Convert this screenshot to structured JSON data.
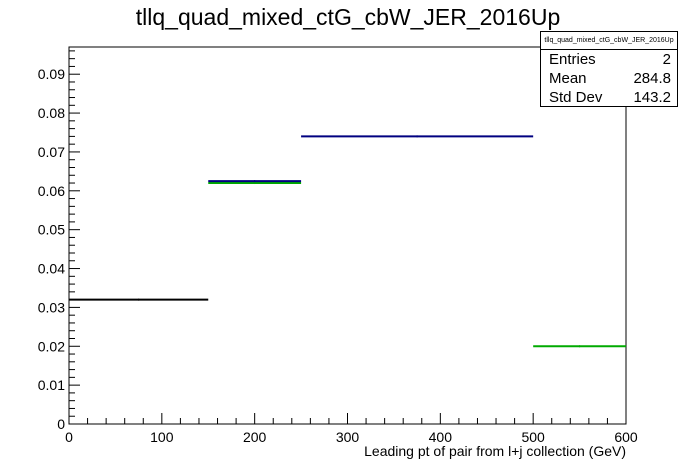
{
  "chart_data": {
    "type": "histogram",
    "title": "tllq_quad_mixed_ctG_cbW_JER_2016Up",
    "xlabel": "Leading pt of pair from l+j collection (GeV)",
    "ylabel": "",
    "xlim": [
      0,
      600
    ],
    "ylim": [
      0,
      0.097
    ],
    "x_ticks": [
      0,
      100,
      200,
      300,
      400,
      500,
      600
    ],
    "y_ticks": [
      0,
      0.01,
      0.02,
      0.03,
      0.04,
      0.05,
      0.06,
      0.07,
      0.08,
      0.09
    ],
    "x_tick_labels": [
      "0",
      "100",
      "200",
      "300",
      "400",
      "500",
      "600"
    ],
    "y_tick_labels": [
      "0",
      "0.01",
      "0.02",
      "0.03",
      "0.04",
      "0.05",
      "0.06",
      "0.07",
      "0.08",
      "0.09"
    ],
    "series": [
      {
        "color": "#000000",
        "bins": [
          {
            "x0": 0,
            "x1": 150,
            "y": 0.032
          }
        ]
      },
      {
        "color": "#00aa00",
        "bins": [
          {
            "x0": 150,
            "x1": 250,
            "y": 0.062
          },
          {
            "x0": 500,
            "x1": 600,
            "y": 0.02
          }
        ]
      },
      {
        "color": "#000080",
        "bins": [
          {
            "x0": 150,
            "x1": 250,
            "y": 0.0625
          },
          {
            "x0": 250,
            "x1": 500,
            "y": 0.074
          }
        ]
      }
    ],
    "grid": false,
    "legend": "none"
  },
  "stats_box": {
    "title": "tllq_quad_mixed_ctG_cbW_JER_2016Up",
    "rows": [
      {
        "label": "Entries",
        "value": "2"
      },
      {
        "label": "Mean",
        "value": "284.8"
      },
      {
        "label": "Std Dev",
        "value": "143.2"
      }
    ]
  }
}
